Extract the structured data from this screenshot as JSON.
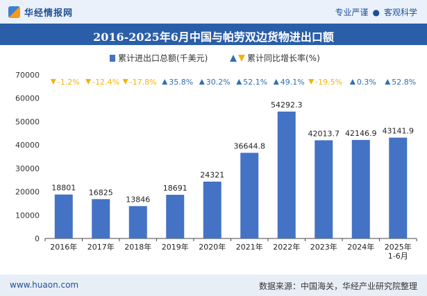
{
  "header": {
    "brand": "华经情报网",
    "slogan_left": "专业严谨",
    "slogan_sep": "●",
    "slogan_right": "客观科学"
  },
  "footer": {
    "website": "www.huaon.com",
    "source": "数据来源：中国海关，华经产业研究院整理"
  },
  "colors": {
    "bar": "#4472c4",
    "up": "#2e6fb0",
    "down": "#f3b400",
    "header_band": "#2b5ea8"
  },
  "chart_data": {
    "type": "bar",
    "title": "2016-2025年6月中国与帕劳双边货物进出口额",
    "categories": [
      "2016年",
      "2017年",
      "2018年",
      "2019年",
      "2020年",
      "2021年",
      "2022年",
      "2023年",
      "2024年",
      "2025年\n1-6月"
    ],
    "series": [
      {
        "name": "累计进出口总额(千美元)",
        "values": [
          18801,
          16825,
          13846,
          18691,
          24321,
          36644.8,
          54292.3,
          42013.7,
          42146.9,
          43141.9
        ],
        "labels": [
          "18801",
          "16825",
          "13846",
          "18691",
          "24321",
          "36644.8",
          "54292.3",
          "42013.7",
          "42146.9",
          "43141.9"
        ]
      },
      {
        "name": "累计同比增长率(%)",
        "values": [
          -1.2,
          -12.4,
          -17.8,
          35.8,
          30.2,
          52.1,
          49.1,
          -19.5,
          0.3,
          52.8
        ],
        "labels": [
          "-1.2%",
          "-12.4%",
          "-17.8%",
          "35.8%",
          "30.2%",
          "52.1%",
          "49.1%",
          "-19.5%",
          "0.3%",
          "52.8%"
        ]
      }
    ],
    "yticks": [
      "0",
      "10000",
      "20000",
      "30000",
      "40000",
      "50000",
      "60000",
      "70000"
    ],
    "ylim": [
      0,
      70000
    ],
    "legend_position": "top-center",
    "grid": false
  }
}
